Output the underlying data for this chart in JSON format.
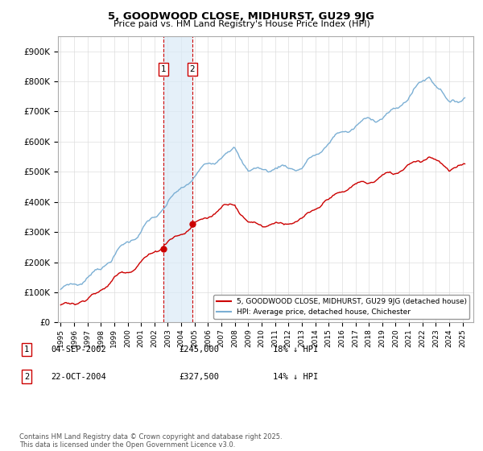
{
  "title": "5, GOODWOOD CLOSE, MIDHURST, GU29 9JG",
  "subtitle": "Price paid vs. HM Land Registry's House Price Index (HPI)",
  "legend_line1": "5, GOODWOOD CLOSE, MIDHURST, GU29 9JG (detached house)",
  "legend_line2": "HPI: Average price, detached house, Chichester",
  "sale1_label": "1",
  "sale1_date": "04-SEP-2002",
  "sale1_price": "£245,000",
  "sale1_hpi": "18% ↓ HPI",
  "sale1_year": 2002.67,
  "sale1_value": 245000,
  "sale2_label": "2",
  "sale2_date": "22-OCT-2004",
  "sale2_price": "£327,500",
  "sale2_hpi": "14% ↓ HPI",
  "sale2_year": 2004.83,
  "sale2_value": 327500,
  "footer": "Contains HM Land Registry data © Crown copyright and database right 2025.\nThis data is licensed under the Open Government Licence v3.0.",
  "red_color": "#cc0000",
  "blue_color": "#7bafd4",
  "shade_color": "#daeaf7",
  "ylim": [
    0,
    950000
  ],
  "yticks": [
    0,
    100000,
    200000,
    300000,
    400000,
    500000,
    600000,
    700000,
    800000,
    900000
  ],
  "xlim_start": 1994.8,
  "xlim_end": 2025.8,
  "background_color": "#ffffff",
  "grid_color": "#dddddd"
}
